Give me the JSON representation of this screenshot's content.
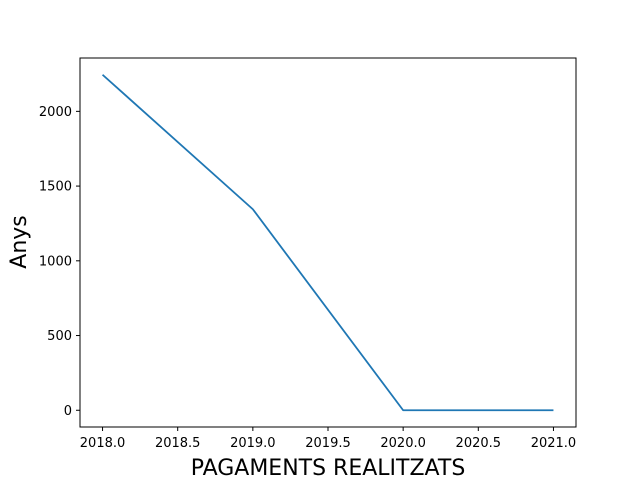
{
  "chart_data": {
    "type": "line",
    "title": "",
    "xlabel": "PAGAMENTS REALITZATS",
    "ylabel": "Anys",
    "x": [
      2018,
      2019,
      2020,
      2021
    ],
    "series": [
      {
        "values": [
          2245,
          1345,
          0,
          0
        ]
      }
    ],
    "xlim": [
      2017.85,
      2021.15
    ],
    "ylim": [
      -112,
      2357
    ],
    "xticks": [
      2018.0,
      2018.5,
      2019.0,
      2019.5,
      2020.0,
      2020.5,
      2021.0
    ],
    "xtick_labels": [
      "2018.0",
      "2018.5",
      "2019.0",
      "2019.5",
      "2020.0",
      "2020.5",
      "2021.0"
    ],
    "yticks": [
      0,
      500,
      1000,
      1500,
      2000
    ],
    "ytick_labels": [
      "0",
      "500",
      "1000",
      "1500",
      "2000"
    ],
    "grid": false,
    "legend": "none",
    "line_color": "#1f77b4"
  }
}
